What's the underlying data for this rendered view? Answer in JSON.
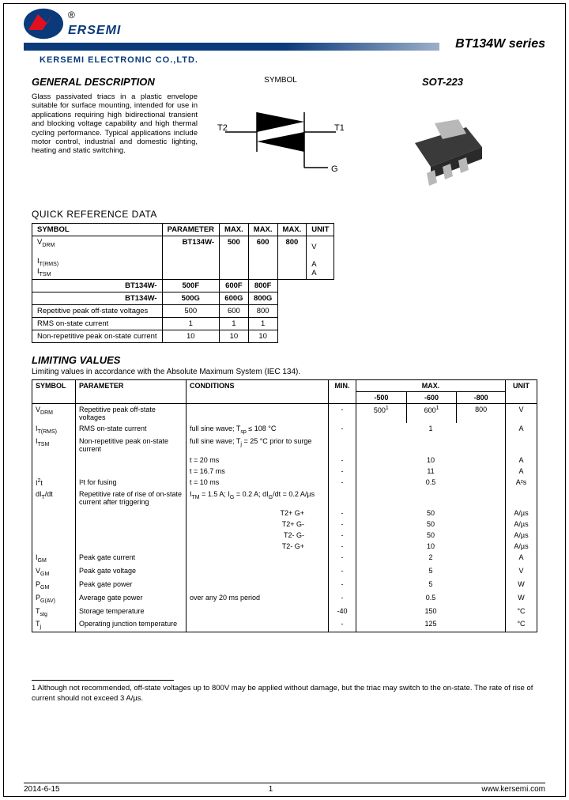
{
  "header": {
    "brand": "ERSEMI",
    "series_title": "BT134W series",
    "company": "KERSEMI ELECTRONIC CO.,LTD."
  },
  "general_description": {
    "heading": "GENERAL DESCRIPTION",
    "text": "Glass passivated triacs in a plastic envelope suitable for surface mounting, intended for use in applications requiring high bidirectional transient and blocking voltage capability and high thermal cycling performance. Typical applications include motor control, industrial and domestic lighting, heating and static switching."
  },
  "symbol": {
    "title": "SYMBOL",
    "t1_label": "T1",
    "t2_label": "T2",
    "g_label": "G",
    "line_color": "#000000"
  },
  "package": {
    "title": "SOT-223",
    "body_color": "#3a3a3a",
    "lead_color": "#b8b8b8"
  },
  "quick_ref": {
    "title": "QUICK REFERENCE DATA",
    "headers": [
      "SYMBOL",
      "PARAMETER",
      "MAX.",
      "MAX.",
      "MAX.",
      "UNIT"
    ],
    "part_rows": [
      {
        "label": "BT134W-",
        "vals": [
          "500",
          "600",
          "800"
        ]
      },
      {
        "label": "BT134W-",
        "vals": [
          "500F",
          "600F",
          "800F"
        ]
      },
      {
        "label": "BT134W-",
        "vals": [
          "500G",
          "600G",
          "800G"
        ]
      }
    ],
    "data_rows": [
      {
        "sym": "V",
        "sub": "DRM",
        "param": "Repetitive peak off-state voltages",
        "vals": [
          "500",
          "600",
          "800"
        ],
        "unit": "V"
      },
      {
        "sym": "I",
        "sub": "T(RMS)",
        "param": "RMS on-state current",
        "vals": [
          "1",
          "1",
          "1"
        ],
        "unit": "A"
      },
      {
        "sym": "I",
        "sub": "TSM",
        "param": "Non-repetitive peak on-state current",
        "vals": [
          "10",
          "10",
          "10"
        ],
        "unit": "A"
      }
    ]
  },
  "limiting": {
    "title": "LIMITING VALUES",
    "subtitle": "Limiting values in accordance with the Absolute Maximum System (IEC 134).",
    "headers": {
      "symbol": "SYMBOL",
      "parameter": "PARAMETER",
      "conditions": "CONDITIONS",
      "min": "MIN.",
      "max": "MAX.",
      "unit": "UNIT"
    },
    "subheaders": [
      "-500",
      "-600",
      "-800"
    ],
    "rows": [
      {
        "sym": "V<sub>DRM</sub>",
        "param": "Repetitive peak off-state voltages",
        "cond": "",
        "min": "-",
        "max": [
          "500<sup>1</sup>",
          "600<sup>1</sup>",
          "800"
        ],
        "unit": "V"
      },
      {
        "sym": "I<sub>T(RMS)</sub>",
        "param": "RMS on-state current",
        "cond": "full sine wave; T<sub>sp</sub> ≤ 108 °C",
        "min": "-",
        "max_span": "1",
        "unit": "A"
      },
      {
        "sym": "I<sub>TSM</sub>",
        "param": "Non-repetitive peak on-state current",
        "cond": "full sine wave; T<sub>j</sub> = 25 °C prior to surge",
        "min": "",
        "max_span": "",
        "unit": ""
      },
      {
        "sym": "",
        "param": "",
        "cond": "t = 20 ms",
        "min": "-",
        "max_span": "10",
        "unit": "A"
      },
      {
        "sym": "",
        "param": "",
        "cond": "t = 16.7 ms",
        "min": "-",
        "max_span": "11",
        "unit": "A"
      },
      {
        "sym": "I<sup>2</sup>t",
        "param": "I²t for fusing",
        "cond": "t = 10 ms",
        "min": "-",
        "max_span": "0.5",
        "unit": "A²s"
      },
      {
        "sym": "dI<sub>T</sub>/dt",
        "param": "Repetitive rate of rise of on-state current after triggering",
        "cond": "I<sub>TM</sub> = 1.5 A; I<sub>G</sub> = 0.2 A; dI<sub>G</sub>/dt = 0.2 A/µs",
        "min": "",
        "max_span": "",
        "unit": ""
      },
      {
        "sym": "",
        "param": "",
        "cond": "T2+ G+",
        "min": "-",
        "max_span": "50",
        "unit": "A/µs"
      },
      {
        "sym": "",
        "param": "",
        "cond": "T2+ G-",
        "min": "-",
        "max_span": "50",
        "unit": "A/µs"
      },
      {
        "sym": "",
        "param": "",
        "cond": "T2- G-",
        "min": "-",
        "max_span": "50",
        "unit": "A/µs"
      },
      {
        "sym": "",
        "param": "",
        "cond": "T2- G+",
        "min": "-",
        "max_span": "10",
        "unit": "A/µs"
      },
      {
        "sym": "I<sub>GM</sub>",
        "param": "Peak gate current",
        "cond": "",
        "min": "-",
        "max_span": "2",
        "unit": "A"
      },
      {
        "sym": "V<sub>GM</sub>",
        "param": "Peak gate voltage",
        "cond": "",
        "min": "-",
        "max_span": "5",
        "unit": "V"
      },
      {
        "sym": "P<sub>GM</sub>",
        "param": "Peak gate power",
        "cond": "",
        "min": "-",
        "max_span": "5",
        "unit": "W"
      },
      {
        "sym": "P<sub>G(AV)</sub>",
        "param": "Average gate power",
        "cond": "over any 20 ms period",
        "min": "-",
        "max_span": "0.5",
        "unit": "W"
      },
      {
        "sym": "T<sub>stg</sub>",
        "param": "Storage temperature",
        "cond": "",
        "min": "-40",
        "max_span": "150",
        "unit": "°C"
      },
      {
        "sym": "T<sub>j</sub>",
        "param": "Operating junction temperature",
        "cond": "",
        "min": "-",
        "max_span": "125",
        "unit": "°C"
      }
    ]
  },
  "footnote": "1 Although not recommended, off-state voltages up to 800V may be applied without damage, but the triac may switch to the on-state. The rate of rise of current should not exceed 3 A/µs.",
  "footer": {
    "date": "2014-6-15",
    "page": "1",
    "url": "www.kersemi.com"
  },
  "colors": {
    "brand_blue": "#0a3a7a",
    "brand_red": "#e01020",
    "text": "#000000",
    "bg": "#ffffff"
  }
}
